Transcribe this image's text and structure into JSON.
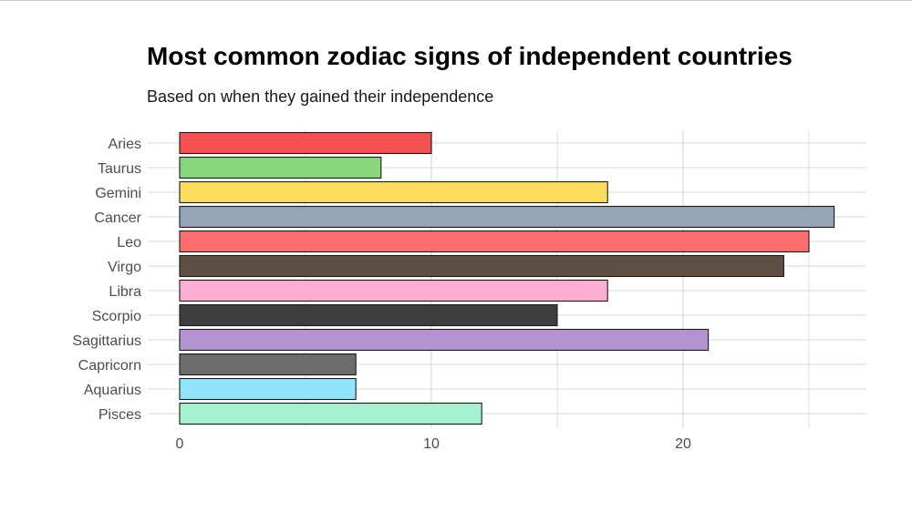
{
  "chart_data": {
    "type": "bar",
    "orientation": "horizontal",
    "title": "Most common zodiac signs of independent countries",
    "subtitle": "Based on when they gained their independence",
    "xlabel": "",
    "ylabel": "",
    "categories": [
      "Aries",
      "Taurus",
      "Gemini",
      "Cancer",
      "Leo",
      "Virgo",
      "Libra",
      "Scorpio",
      "Sagittarius",
      "Capricorn",
      "Aquarius",
      "Pisces"
    ],
    "values": [
      10,
      8,
      17,
      26,
      25,
      24,
      17,
      15,
      21,
      7,
      7,
      12
    ],
    "colors": [
      "#f65152",
      "#87d67a",
      "#fcdc5f",
      "#95a4b7",
      "#fc6e6e",
      "#5e4d43",
      "#fbaed1",
      "#3e3e3e",
      "#b394d1",
      "#6b6d6d",
      "#90e5fc",
      "#a6f1d0"
    ],
    "xlim": [
      0,
      27.3
    ],
    "x_ticks": [
      0,
      10,
      20
    ],
    "x_tick_labels": [
      "0",
      "10",
      "20"
    ],
    "grid": true,
    "legend": "none"
  }
}
